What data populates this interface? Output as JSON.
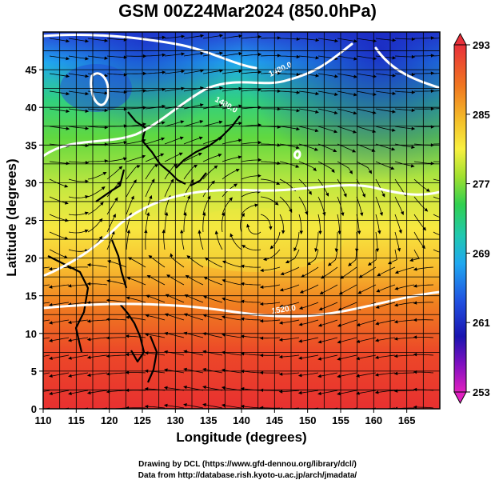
{
  "title": "GSM 00Z24Mar2024 (850.0hPa)",
  "axes": {
    "xlabel": "Longitude (degrees)",
    "ylabel": "Latitude  (degrees)",
    "x_ticks": [
      "110",
      "115",
      "120",
      "125",
      "130",
      "135",
      "140",
      "145",
      "150",
      "155",
      "160",
      "165"
    ],
    "y_ticks": [
      "0",
      "5",
      "10",
      "15",
      "20",
      "25",
      "30",
      "35",
      "40",
      "45"
    ]
  },
  "colorbar": {
    "labels": [
      "293",
      "285",
      "277",
      "269",
      "261",
      "253"
    ],
    "colors_top_to_bottom": [
      "#e8303a",
      "#f07820",
      "#f4c02a",
      "#f8f040",
      "#a0e030",
      "#30d050",
      "#20c8b0",
      "#20a8f0",
      "#2050e0",
      "#1a14b0",
      "#8010c0",
      "#e020c0"
    ]
  },
  "contour_labels": [
    "1480.0",
    "1480.0",
    "1520.0"
  ],
  "credits": {
    "line1": "Drawing by DCL (https://www.gfd-dennou.org/library/dcl/)",
    "line2": "Data from http://database.rish.kyoto-u.ac.jp/arch/jmadata/"
  },
  "chart_data": {
    "type": "heatmap",
    "title": "GSM 00Z24Mar2024 (850.0hPa)",
    "xlabel": "Longitude (degrees)",
    "ylabel": "Latitude  (degrees)",
    "xlim": [
      110,
      170
    ],
    "ylim": [
      0,
      50
    ],
    "colorbar_range": [
      253,
      293
    ],
    "colorbar_ticks": [
      293,
      285,
      277,
      269,
      261,
      253
    ],
    "contour_values": [
      1480.0,
      1520.0
    ],
    "anticyclone_center": [
      142,
      25
    ]
  }
}
